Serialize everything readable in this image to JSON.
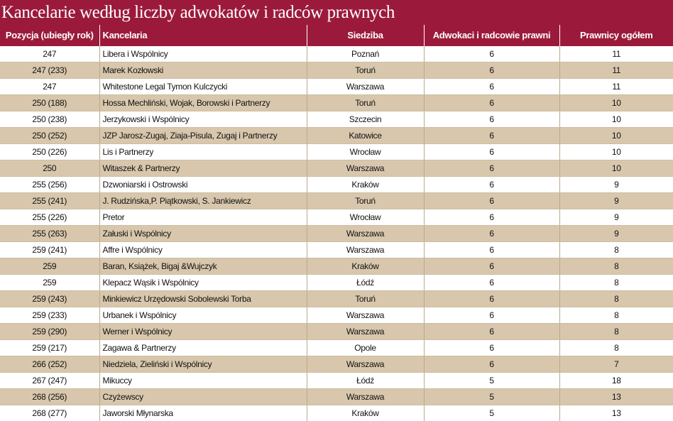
{
  "title": "Kancelarie według liczby adwokatów i radców prawnych",
  "table": {
    "header": [
      "Pozycja (ubiegły rok)",
      "Kancelaria",
      "Siedziba",
      "Adwokaci i radcowie prawni",
      "Prawnicy ogółem"
    ],
    "rows": [
      [
        247,
        "Libera i Wspólnicy",
        "Poznań",
        6,
        11
      ],
      [
        "247 (233)",
        "Marek Kozłowski",
        "Toruń",
        6,
        11
      ],
      [
        247,
        "Whitestone Legal Tymon Kulczycki",
        "Warszawa",
        6,
        11
      ],
      [
        "250 (188)",
        "Hossa Mechliński, Wojak, Borowski i Partnerzy",
        "Toruń",
        6,
        10
      ],
      [
        "250 (238)",
        "Jerzykowski i Wspólnicy",
        "Szczecin",
        6,
        10
      ],
      [
        "250 (252)",
        "JZP Jarosz-Zugaj, Ziaja-Pisula, Zugaj i Partnerzy",
        "Katowice",
        6,
        10
      ],
      [
        "250 (226)",
        "Lis i Partnerzy",
        "Wrocław",
        6,
        10
      ],
      [
        250,
        "Witaszek & Partnerzy",
        "Warszawa",
        6,
        10
      ],
      [
        "255 (256)",
        "Dzwoniarski i Ostrowski",
        "Kraków",
        6,
        9
      ],
      [
        "255 (241)",
        "J. Rudzińska,P. Piątkowski, S. Jankiewicz",
        "Toruń",
        6,
        9
      ],
      [
        "255 (226)",
        "Pretor",
        "Wrocław",
        6,
        9
      ],
      [
        "255 (263)",
        "Załuski i Wspólnicy",
        "Warszawa",
        6,
        9
      ],
      [
        "259 (241)",
        "Affre i Wspólnicy",
        "Warszawa",
        6,
        8
      ],
      [
        259,
        "Baran, Książek, Bigaj &Wujczyk",
        "Kraków",
        6,
        8
      ],
      [
        259,
        "Klepacz Wąsik i Wspólnicy",
        "Łódź",
        6,
        8
      ],
      [
        "259 (243)",
        "Minkiewicz Urzędowski Sobolewski Torba",
        "Toruń",
        6,
        8
      ],
      [
        "259 (233)",
        "Urbanek i Wspólnicy",
        "Warszawa",
        6,
        8
      ],
      [
        "259 (290)",
        "Werner i Wspólnicy",
        "Warszawa",
        6,
        8
      ],
      [
        "259 (217)",
        "Zagawa & Partnerzy",
        "Opole",
        6,
        8
      ],
      [
        "266 (252)",
        "Niedziela, Zieliński i Wspólnicy",
        "Warszawa",
        6,
        7
      ],
      [
        "267 (247)",
        "Mikuccy",
        "Łódź",
        5,
        18
      ],
      [
        "268 (256)",
        "Czyżewscy",
        "Warszawa",
        5,
        13
      ],
      [
        "268 (277)",
        "Jaworski Młynarska",
        "Kraków",
        5,
        13
      ]
    ]
  }
}
